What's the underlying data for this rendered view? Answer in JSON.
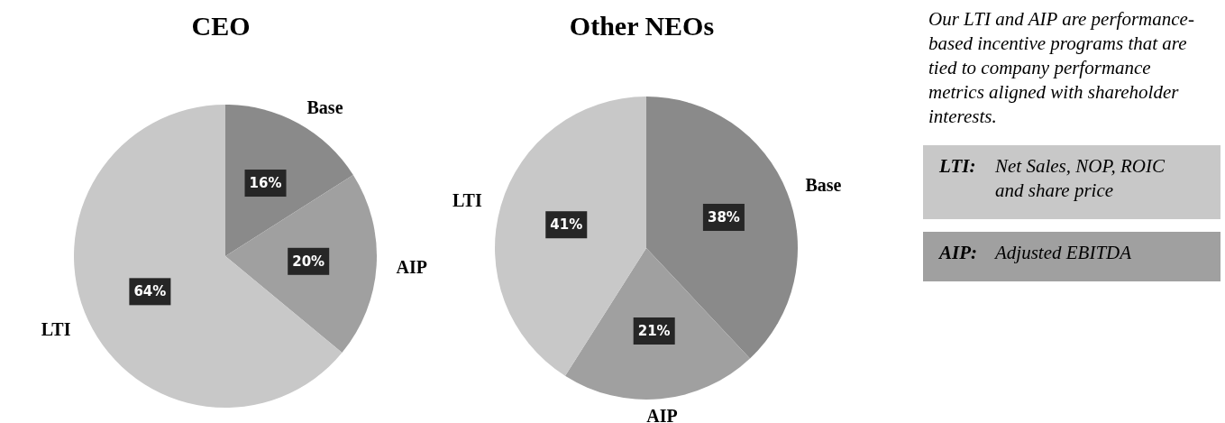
{
  "chart_data": [
    {
      "type": "pie",
      "title": "CEO",
      "categories": [
        "Base",
        "AIP",
        "LTI"
      ],
      "values": [
        16,
        20,
        64
      ],
      "colors": [
        "#8a8a8a",
        "#a0a0a0",
        "#c8c8c8"
      ],
      "value_labels": [
        "16%",
        "20%",
        "64%"
      ]
    },
    {
      "type": "pie",
      "title": "Other NEOs",
      "categories": [
        "Base",
        "AIP",
        "LTI"
      ],
      "values": [
        38,
        21,
        41
      ],
      "colors": [
        "#8a8a8a",
        "#a0a0a0",
        "#c8c8c8"
      ],
      "value_labels": [
        "38%",
        "21%",
        "41%"
      ]
    },
    {
      "type": "other",
      "annotations": [
        "Our LTI and AIP are performance-based incentive programs that are tied to company performance metrics aligned with shareholder interests.",
        "LTI: Net Sales, NOP, ROIC and share price",
        "AIP: Adjusted EBITDA"
      ]
    }
  ]
}
